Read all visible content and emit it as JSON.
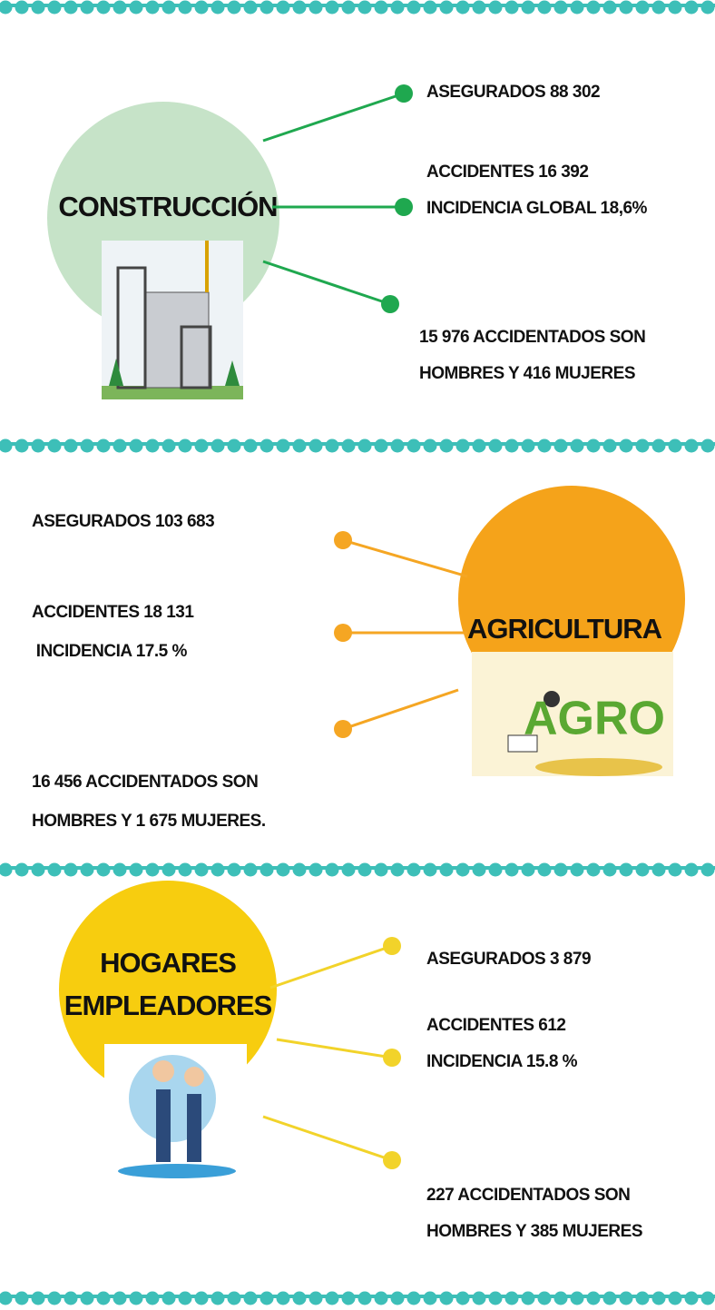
{
  "sections": [
    {
      "title": "CONSTRUCCIÓN",
      "items": [
        [
          "ASEGURADOS 88 302"
        ],
        [
          "ACCIDENTES 16 392",
          "INCIDENCIA GLOBAL 18,6%"
        ],
        [
          "15 976 ACCIDENTADOS SON",
          "HOMBRES Y 416 MUJERES"
        ]
      ]
    },
    {
      "title": "AGRICULTURA",
      "image_text": "AGRO",
      "items": [
        [
          "ASEGURADOS 103 683"
        ],
        [
          "ACCIDENTES 18 131",
          " INCIDENCIA 17.5 %"
        ],
        [
          "16 456 ACCIDENTADOS SON",
          "HOMBRES Y 1 675 MUJERES."
        ]
      ]
    },
    {
      "title": [
        "HOGARES",
        "EMPLEADORES"
      ],
      "items": [
        [
          "ASEGURADOS 3 879"
        ],
        [
          "ACCIDENTES 612",
          "INCIDENCIA 15.8 %"
        ],
        [
          "227 ACCIDENTADOS SON",
          "HOMBRES Y 385 MUJERES"
        ]
      ]
    }
  ]
}
